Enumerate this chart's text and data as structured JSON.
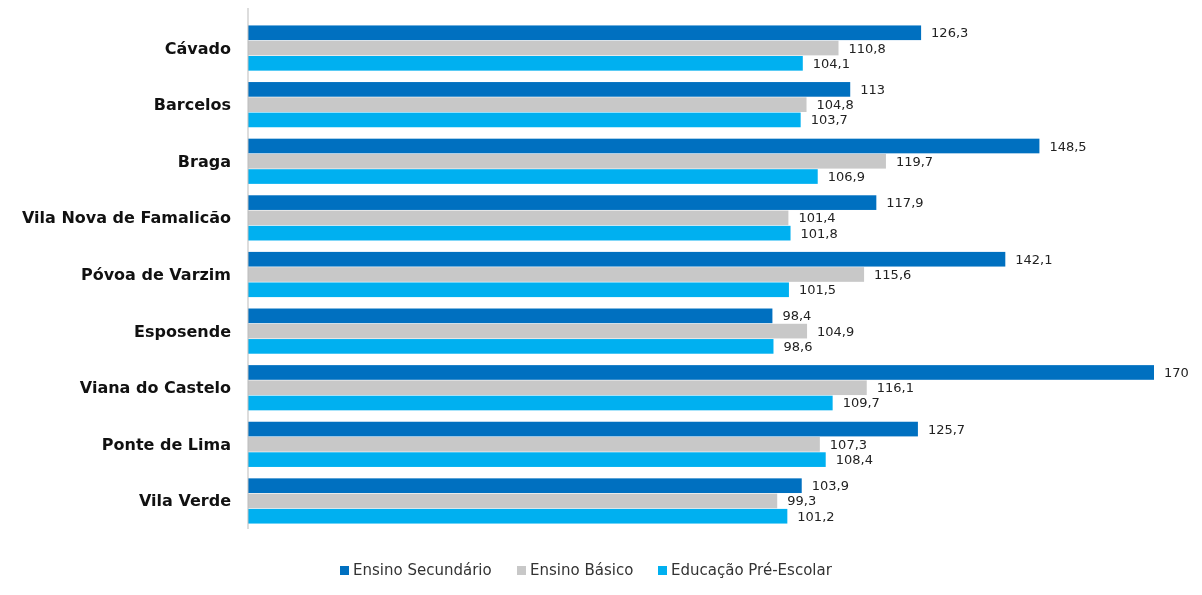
{
  "chart_data": {
    "type": "bar",
    "orientation": "horizontal",
    "categories": [
      "Cávado",
      "Barcelos",
      "Braga",
      "Vila Nova de Famalicão",
      "Póvoa de Varzim",
      "Esposende",
      "Viana do Castelo",
      "Ponte de Lima",
      "Vila Verde"
    ],
    "series": [
      {
        "name": "Ensino Secundário",
        "color": "#0070c0",
        "values": [
          126.3,
          113,
          148.5,
          117.9,
          142.1,
          98.4,
          170,
          125.7,
          103.9
        ],
        "value_labels": [
          "126,3",
          "113",
          "148,5",
          "117,9",
          "142,1",
          "98,4",
          "170",
          "125,7",
          "103,9"
        ]
      },
      {
        "name": "Ensino Básico",
        "color": "#c8c8c8",
        "values": [
          110.8,
          104.8,
          119.7,
          101.4,
          115.6,
          104.9,
          116.1,
          107.3,
          99.3
        ],
        "value_labels": [
          "110,8",
          "104,8",
          "119,7",
          "101,4",
          "115,6",
          "104,9",
          "116,1",
          "107,3",
          "99,3"
        ]
      },
      {
        "name": "Educação Pré-Escolar",
        "color": "#00b0f0",
        "values": [
          104.1,
          103.7,
          106.9,
          101.8,
          101.5,
          98.6,
          109.7,
          108.4,
          101.2
        ],
        "value_labels": [
          "104,1",
          "103,7",
          "106,9",
          "101,8",
          "101,5",
          "98,6",
          "109,7",
          "108,4",
          "101,2"
        ]
      }
    ],
    "legend": "bottom"
  }
}
